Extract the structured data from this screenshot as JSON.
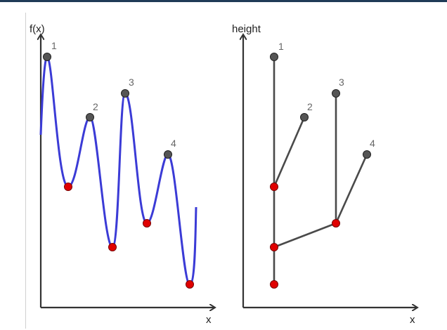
{
  "colors": {
    "axis": "#333333",
    "curve": "#3b3bd6",
    "tree": "#4a4a4a",
    "max_node": "#555555",
    "min_node": "#e00000"
  },
  "left": {
    "y_label": "f(x)",
    "x_label": "x",
    "peak_labels": [
      "1",
      "2",
      "3",
      "4"
    ]
  },
  "right": {
    "y_label": "height",
    "x_label": "x",
    "peak_labels": [
      "1",
      "2",
      "3",
      "4"
    ]
  }
}
